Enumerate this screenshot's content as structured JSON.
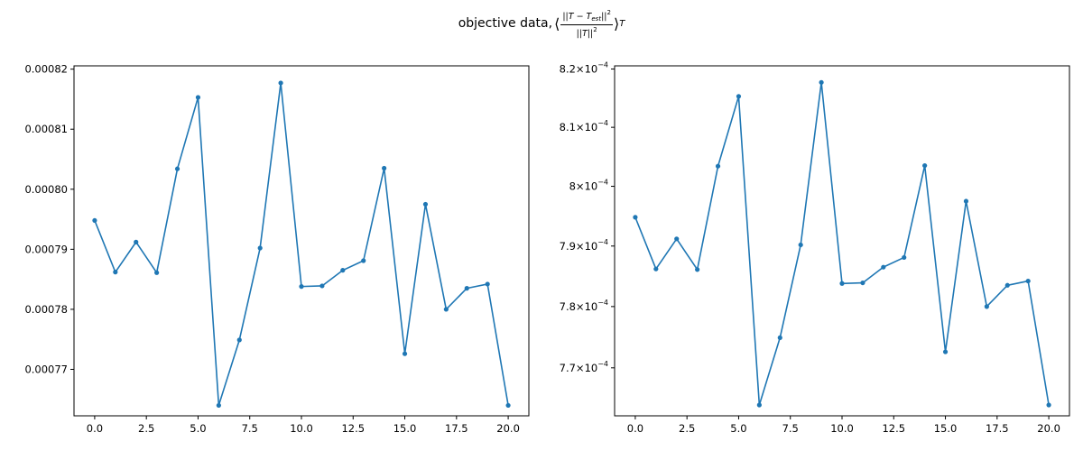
{
  "figure": {
    "title_text": "objective data,",
    "title_math": {
      "open": "⟨",
      "numerator": {
        "left_bars": "||",
        "T": "T",
        "minus": " − ",
        "T2": "T",
        "sub": "est",
        "right_bars": "||",
        "sup": "2"
      },
      "denominator": {
        "left_bars": "||",
        "T": "T",
        "right_bars": "||",
        "sup": "2"
      },
      "close": "⟩",
      "subscript": "T"
    }
  },
  "colors": {
    "line": "#1f77b4",
    "axis": "#000000"
  },
  "chart_data": [
    {
      "type": "line",
      "marker": "dot",
      "x": [
        0,
        1,
        2,
        3,
        4,
        5,
        6,
        7,
        8,
        9,
        10,
        11,
        12,
        13,
        14,
        15,
        16,
        17,
        18,
        19,
        20
      ],
      "series": [
        {
          "values": [
            0.0007948,
            0.0007862,
            0.0007912,
            0.0007861,
            0.0008034,
            0.0008153,
            0.000764,
            0.0007749,
            0.0007902,
            0.0008177,
            0.0007838,
            0.0007839,
            0.0007865,
            0.0007881,
            0.0008035,
            0.0007726,
            0.0007975,
            0.00078,
            0.0007835,
            0.0007842,
            0.000764
          ]
        }
      ],
      "xlim": [
        -1.0,
        21.0
      ],
      "ylim": [
        0.00076226,
        0.00082055
      ],
      "xticks": [
        0,
        2.5,
        5,
        7.5,
        10,
        12.5,
        15,
        17.5,
        20
      ],
      "xtick_labels": [
        "0.0",
        "2.5",
        "5.0",
        "7.5",
        "10.0",
        "12.5",
        "15.0",
        "17.5",
        "20.0"
      ],
      "yticks": [
        0.00077,
        0.00078,
        0.00079,
        0.0008,
        0.00081,
        0.00082
      ],
      "ytick_labels": [
        "0.00077",
        "0.00078",
        "0.00079",
        "0.00080",
        "0.00081",
        "0.00082"
      ],
      "yscale": "linear",
      "grid": false
    },
    {
      "type": "line",
      "marker": "dot",
      "x": [
        0,
        1,
        2,
        3,
        4,
        5,
        6,
        7,
        8,
        9,
        10,
        11,
        12,
        13,
        14,
        15,
        16,
        17,
        18,
        19,
        20
      ],
      "series": [
        {
          "values": [
            0.0007948,
            0.0007862,
            0.0007912,
            0.0007861,
            0.0008034,
            0.0008153,
            0.000764,
            0.0007749,
            0.0007902,
            0.0008177,
            0.0007838,
            0.0007839,
            0.0007865,
            0.0007881,
            0.0008035,
            0.0007726,
            0.0007975,
            0.00078,
            0.0007835,
            0.0007842,
            0.000764
          ]
        }
      ],
      "xlim": [
        -1.0,
        21.0
      ],
      "ylim": [
        0.00076226,
        0.00082055
      ],
      "xticks": [
        0,
        2.5,
        5,
        7.5,
        10,
        12.5,
        15,
        17.5,
        20
      ],
      "xtick_labels": [
        "0.0",
        "2.5",
        "5.0",
        "7.5",
        "10.0",
        "12.5",
        "15.0",
        "17.5",
        "20.0"
      ],
      "yticks": [
        0.00077,
        0.00078,
        0.00079,
        0.0008,
        0.00081,
        0.00082
      ],
      "ytick_labels": [
        {
          "mant": "7.7",
          "base": "10",
          "exp": "−4"
        },
        {
          "mant": "7.8",
          "base": "10",
          "exp": "−4"
        },
        {
          "mant": "7.9",
          "base": "10",
          "exp": "−4"
        },
        {
          "mant": "8",
          "base": "10",
          "exp": "−4"
        },
        {
          "mant": "8.1",
          "base": "10",
          "exp": "−4"
        },
        {
          "mant": "8.2",
          "base": "10",
          "exp": "−4"
        }
      ],
      "yscale": "log",
      "grid": false
    }
  ]
}
